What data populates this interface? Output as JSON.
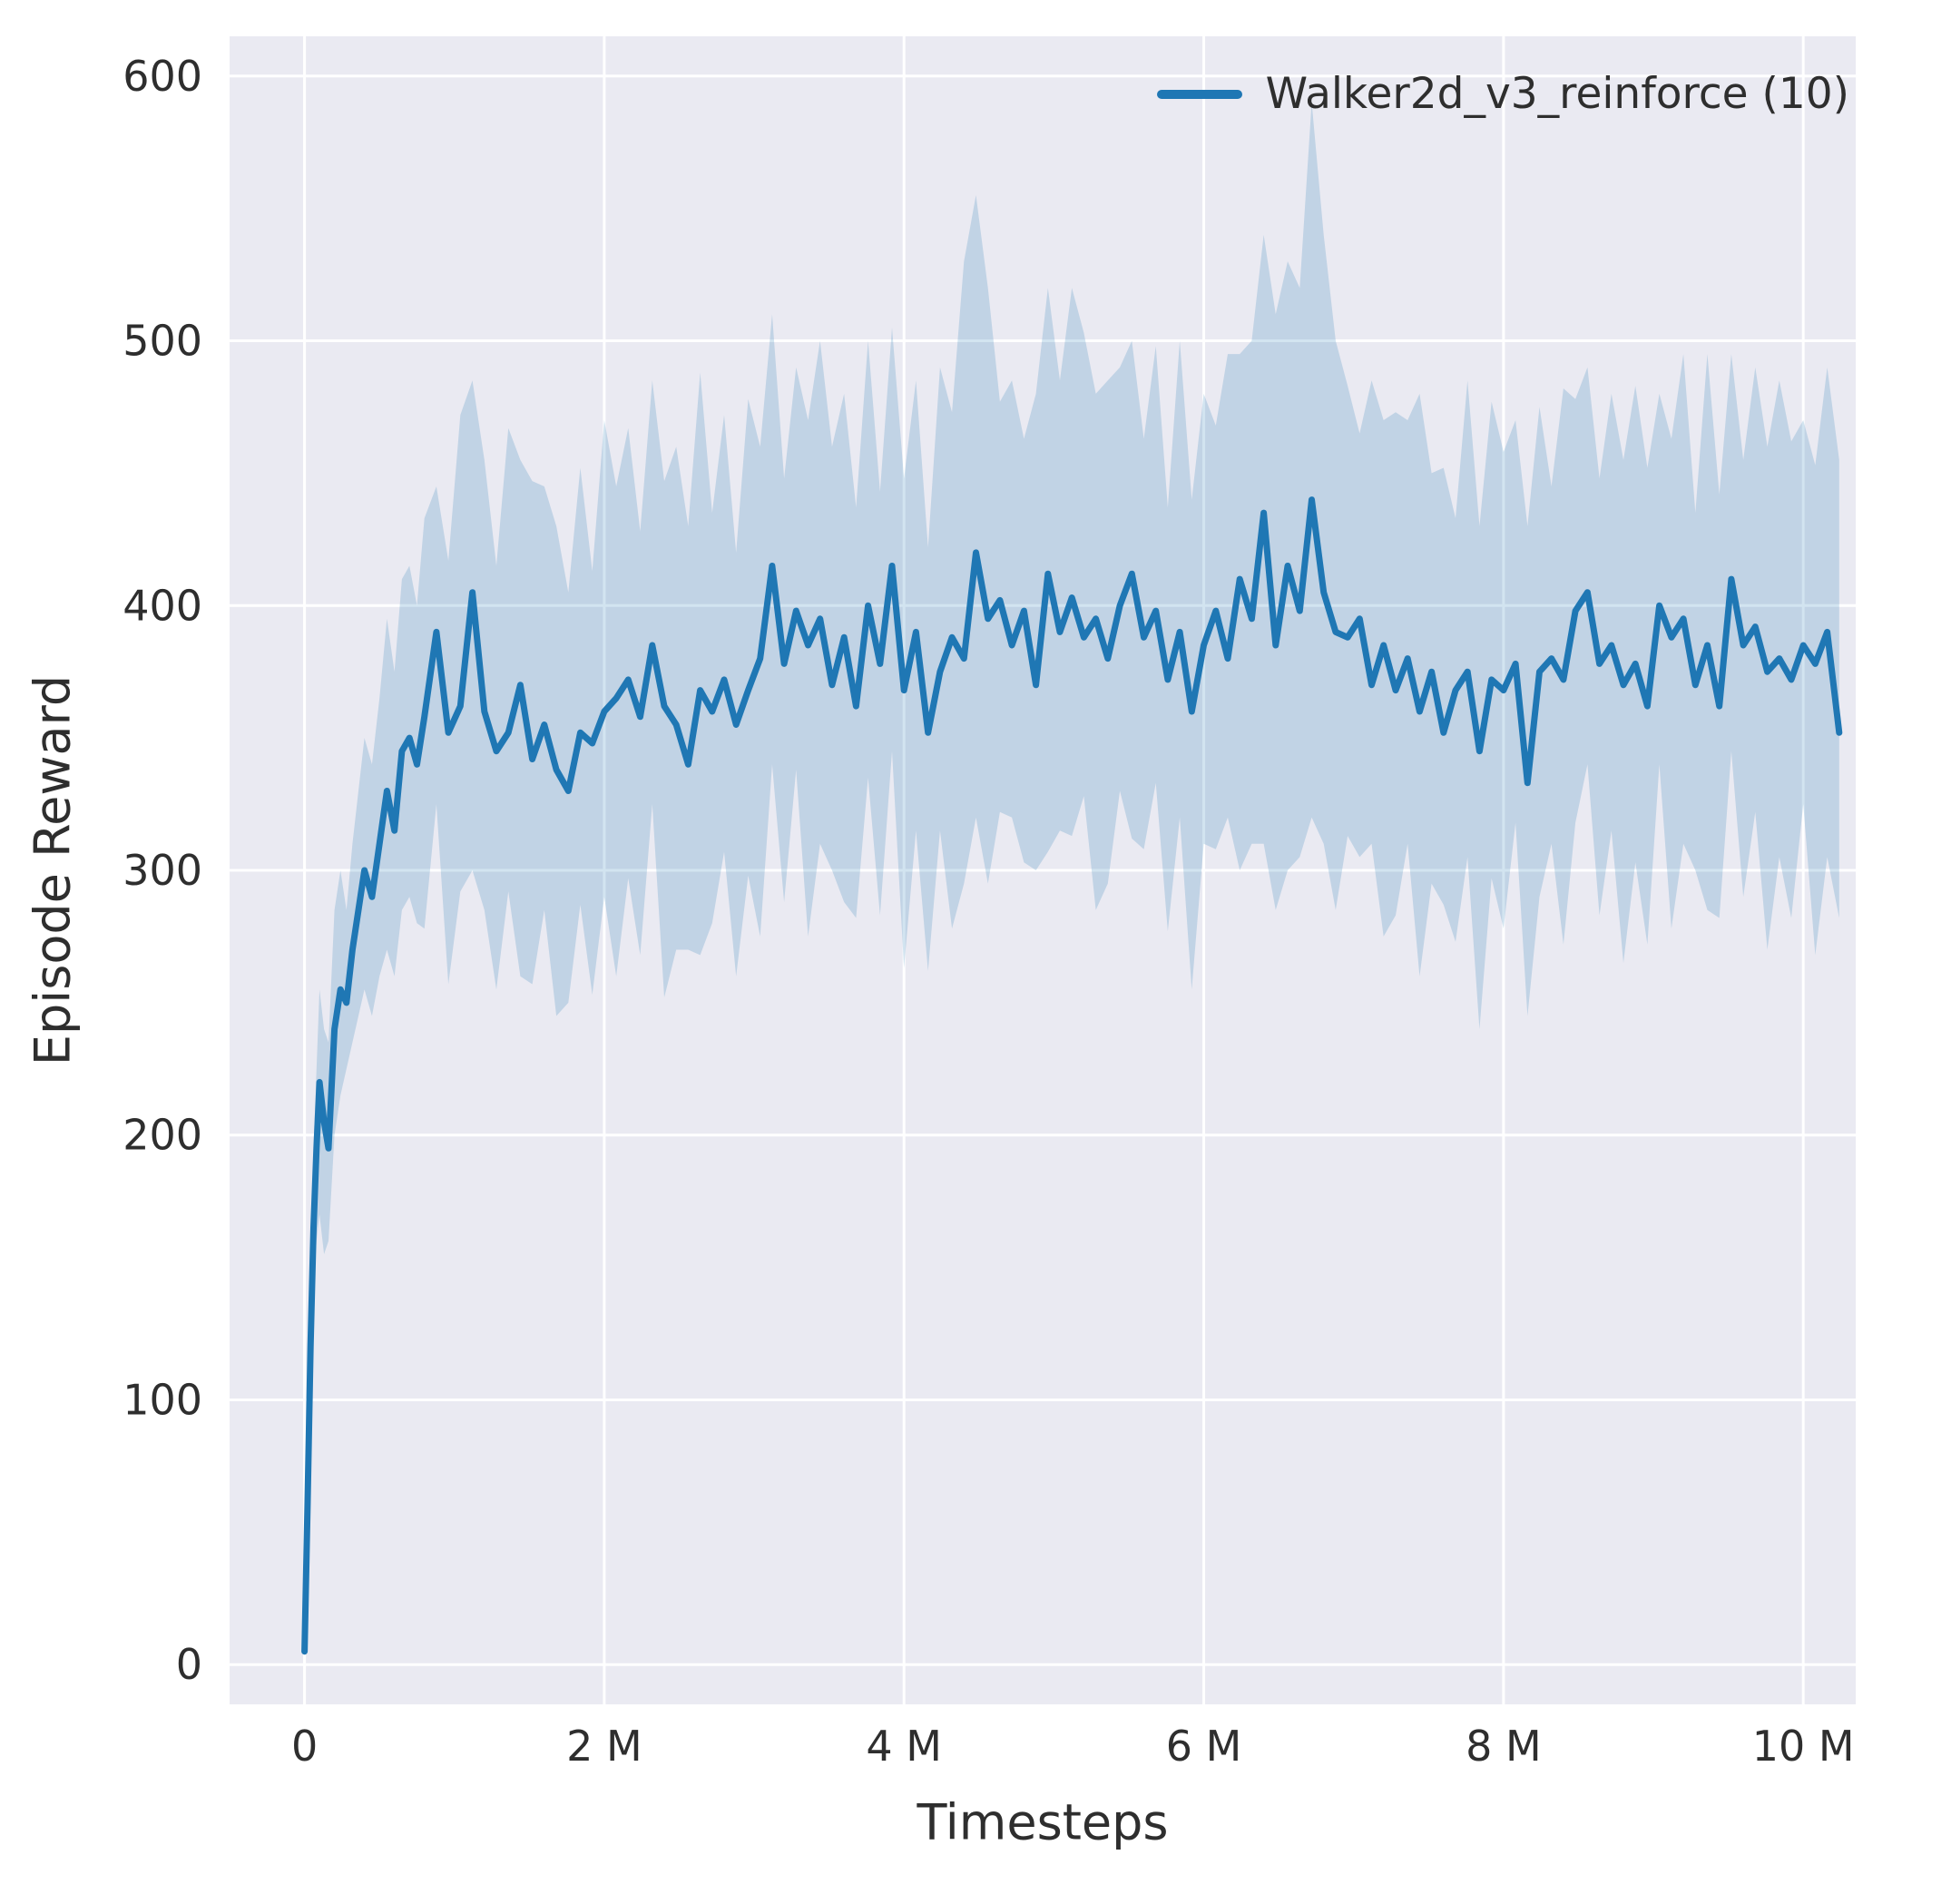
{
  "colors": {
    "axes_background": "#eaeaf2",
    "grid": "#ffffff",
    "line": "#1f77b4",
    "band": "#1f77b4",
    "text": "#2e2e2e"
  },
  "chart_data": {
    "type": "line",
    "title": "",
    "xlabel": "Timesteps",
    "ylabel": "Episode Reward",
    "x_units": "millions of timesteps",
    "xlim": [
      -0.5,
      10.35
    ],
    "ylim": [
      -15,
      615
    ],
    "grid": true,
    "legend_position": "upper right",
    "xticks": [
      {
        "value": 0,
        "label": "0"
      },
      {
        "value": 2,
        "label": "2 M"
      },
      {
        "value": 4,
        "label": "4 M"
      },
      {
        "value": 6,
        "label": "6 M"
      },
      {
        "value": 8,
        "label": "8 M"
      },
      {
        "value": 10,
        "label": "10 M"
      }
    ],
    "yticks": [
      {
        "value": 0,
        "label": "0"
      },
      {
        "value": 100,
        "label": "100"
      },
      {
        "value": 200,
        "label": "200"
      },
      {
        "value": 300,
        "label": "300"
      },
      {
        "value": 400,
        "label": "400"
      },
      {
        "value": 500,
        "label": "500"
      },
      {
        "value": 600,
        "label": "600"
      }
    ],
    "series": [
      {
        "name": "Walker2d_v3_reinforce (10)",
        "color": "#1f77b4",
        "band_opacity": 0.2,
        "x": [
          0,
          0.02,
          0.04,
          0.06,
          0.08,
          0.1,
          0.13,
          0.16,
          0.2,
          0.24,
          0.28,
          0.32,
          0.36,
          0.4,
          0.45,
          0.5,
          0.55,
          0.6,
          0.65,
          0.7,
          0.75,
          0.8,
          0.88,
          0.96,
          1.04,
          1.12,
          1.2,
          1.28,
          1.36,
          1.44,
          1.52,
          1.6,
          1.68,
          1.76,
          1.84,
          1.92,
          2,
          2.08,
          2.16,
          2.24,
          2.32,
          2.4,
          2.48,
          2.56,
          2.64,
          2.72,
          2.8,
          2.88,
          2.96,
          3.04,
          3.12,
          3.2,
          3.28,
          3.36,
          3.44,
          3.52,
          3.6,
          3.68,
          3.76,
          3.84,
          3.92,
          4,
          4.08,
          4.16,
          4.24,
          4.32,
          4.4,
          4.48,
          4.56,
          4.64,
          4.72,
          4.8,
          4.88,
          4.96,
          5.04,
          5.12,
          5.2,
          5.28,
          5.36,
          5.44,
          5.52,
          5.6,
          5.68,
          5.76,
          5.84,
          5.92,
          6,
          6.08,
          6.16,
          6.24,
          6.32,
          6.4,
          6.48,
          6.56,
          6.64,
          6.72,
          6.8,
          6.88,
          6.96,
          7.04,
          7.12,
          7.2,
          7.28,
          7.36,
          7.44,
          7.52,
          7.6,
          7.68,
          7.76,
          7.84,
          7.92,
          8,
          8.08,
          8.16,
          8.24,
          8.32,
          8.4,
          8.48,
          8.56,
          8.64,
          8.72,
          8.8,
          8.88,
          8.96,
          9.04,
          9.12,
          9.2,
          9.28,
          9.36,
          9.44,
          9.52,
          9.6,
          9.68,
          9.76,
          9.84,
          9.92,
          10,
          10.08,
          10.16,
          10.24
        ],
        "mean": [
          5,
          60,
          120,
          165,
          195,
          220,
          205,
          195,
          240,
          255,
          250,
          270,
          285,
          300,
          290,
          310,
          330,
          315,
          345,
          350,
          340,
          358,
          390,
          352,
          362,
          405,
          360,
          345,
          352,
          370,
          342,
          355,
          338,
          330,
          352,
          348,
          360,
          365,
          372,
          358,
          385,
          362,
          355,
          340,
          368,
          360,
          372,
          355,
          368,
          380,
          415,
          378,
          398,
          385,
          395,
          370,
          388,
          362,
          400,
          378,
          415,
          368,
          390,
          352,
          375,
          388,
          380,
          420,
          395,
          402,
          385,
          398,
          370,
          412,
          390,
          403,
          388,
          395,
          380,
          400,
          412,
          388,
          398,
          372,
          390,
          360,
          385,
          398,
          380,
          410,
          395,
          435,
          385,
          415,
          398,
          440,
          405,
          390,
          388,
          395,
          370,
          385,
          368,
          380,
          360,
          375,
          352,
          368,
          375,
          345,
          372,
          368,
          378,
          333,
          375,
          380,
          372,
          398,
          405,
          378,
          385,
          370,
          378,
          362,
          400,
          388,
          395,
          370,
          385,
          362,
          410,
          385,
          392,
          375,
          380,
          372,
          385,
          378,
          390,
          352
        ],
        "band_low": [
          3,
          45,
          100,
          140,
          160,
          170,
          155,
          160,
          200,
          215,
          225,
          235,
          245,
          255,
          245,
          260,
          270,
          260,
          285,
          290,
          280,
          278,
          325,
          257,
          292,
          300,
          285,
          255,
          292,
          260,
          257,
          285,
          245,
          250,
          287,
          253,
          290,
          260,
          297,
          268,
          325,
          252,
          270,
          270,
          268,
          280,
          307,
          260,
          298,
          275,
          340,
          288,
          338,
          275,
          310,
          300,
          288,
          282,
          335,
          283,
          345,
          263,
          315,
          262,
          315,
          278,
          295,
          320,
          295,
          322,
          320,
          303,
          300,
          307,
          315,
          313,
          328,
          285,
          295,
          330,
          312,
          308,
          333,
          277,
          320,
          255,
          310,
          308,
          320,
          300,
          310,
          310,
          285,
          300,
          305,
          320,
          310,
          285,
          313,
          305,
          310,
          275,
          283,
          310,
          260,
          295,
          287,
          273,
          305,
          240,
          297,
          278,
          318,
          245,
          290,
          310,
          272,
          318,
          340,
          283,
          315,
          265,
          303,
          272,
          340,
          278,
          310,
          300,
          285,
          282,
          345,
          290,
          322,
          270,
          305,
          282,
          325,
          268,
          305,
          282
        ],
        "band_high": [
          8,
          80,
          145,
          195,
          225,
          255,
          240,
          235,
          285,
          300,
          285,
          310,
          330,
          350,
          340,
          365,
          395,
          375,
          410,
          415,
          400,
          433,
          445,
          417,
          472,
          485,
          455,
          415,
          467,
          455,
          447,
          445,
          430,
          405,
          452,
          413,
          470,
          445,
          467,
          428,
          485,
          447,
          460,
          430,
          488,
          435,
          472,
          420,
          478,
          460,
          510,
          448,
          490,
          470,
          500,
          460,
          480,
          437,
          500,
          443,
          505,
          448,
          485,
          422,
          490,
          473,
          530,
          555,
          520,
          477,
          485,
          463,
          480,
          520,
          485,
          520,
          503,
          480,
          485,
          490,
          500,
          463,
          498,
          437,
          500,
          440,
          480,
          468,
          495,
          495,
          500,
          540,
          510,
          530,
          520,
          590,
          540,
          500,
          483,
          465,
          485,
          470,
          473,
          470,
          480,
          450,
          452,
          433,
          485,
          430,
          477,
          458,
          470,
          430,
          475,
          445,
          482,
          478,
          490,
          448,
          480,
          455,
          483,
          452,
          480,
          463,
          495,
          435,
          495,
          442,
          495,
          455,
          490,
          460,
          485,
          462,
          470,
          453,
          490,
          455
        ]
      }
    ]
  }
}
